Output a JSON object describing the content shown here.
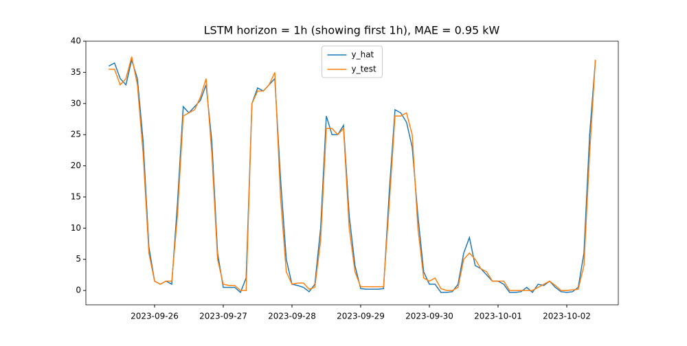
{
  "chart_data": {
    "type": "line",
    "title": "LSTM horizon = 1h (showing first 1h), MAE = 0.95 kW",
    "x": [
      19625.333,
      19625.417,
      19625.5,
      19625.583,
      19625.667,
      19625.75,
      19625.833,
      19625.917,
      19626,
      19626.083,
      19626.167,
      19626.25,
      19626.333,
      19626.417,
      19626.5,
      19626.583,
      19626.667,
      19626.75,
      19626.833,
      19626.917,
      19627,
      19627.083,
      19627.167,
      19627.25,
      19627.333,
      19627.417,
      19627.5,
      19627.583,
      19627.667,
      19627.75,
      19627.833,
      19627.917,
      19628,
      19628.083,
      19628.167,
      19628.25,
      19628.333,
      19628.417,
      19628.5,
      19628.583,
      19628.667,
      19628.75,
      19628.833,
      19628.917,
      19629,
      19629.083,
      19629.167,
      19629.25,
      19629.333,
      19629.417,
      19629.5,
      19629.583,
      19629.667,
      19629.75,
      19629.833,
      19629.917,
      19630,
      19630.083,
      19630.167,
      19630.25,
      19630.333,
      19630.417,
      19630.5,
      19630.583,
      19630.667,
      19630.75,
      19630.833,
      19630.917,
      19631,
      19631.083,
      19631.167,
      19631.25,
      19631.333,
      19631.417,
      19631.5,
      19631.583,
      19631.667,
      19631.75,
      19631.833,
      19631.917,
      19632,
      19632.083,
      19632.167,
      19632.25,
      19632.333,
      19632.417
    ],
    "series": [
      {
        "name": "y_hat",
        "color": "#1f77b4",
        "values": [
          36,
          36.5,
          34,
          33,
          37,
          34,
          24,
          7,
          1.5,
          1,
          1.5,
          1,
          14,
          29.5,
          28.5,
          29.5,
          30.5,
          33,
          24,
          6,
          0.5,
          0.5,
          0.5,
          -0.3,
          2,
          30,
          32.5,
          32,
          33,
          34,
          18,
          5,
          1,
          0.8,
          0.5,
          -0.2,
          1,
          10,
          28,
          25,
          25,
          26.5,
          12,
          4,
          0.3,
          0.2,
          0.2,
          0.2,
          0.3,
          16,
          29,
          28.5,
          27,
          23,
          12,
          3,
          1,
          1,
          -0.3,
          -0.3,
          -0.2,
          1,
          6,
          8.5,
          4,
          3.5,
          2.5,
          1.5,
          1.5,
          1,
          -0.3,
          -0.3,
          -0.2,
          0.5,
          -0.3,
          1,
          0.8,
          1.5,
          0.5,
          -0.2,
          -0.3,
          -0.2,
          0.5,
          6,
          25,
          37
        ]
      },
      {
        "name": "y_test",
        "color": "#ff7f0e",
        "values": [
          35.5,
          35.5,
          33,
          34,
          37.5,
          33,
          22,
          6,
          1.5,
          1,
          1.5,
          1.5,
          12,
          28,
          28.5,
          29,
          31,
          34,
          22,
          5,
          1,
          0.8,
          0.8,
          0,
          0,
          30,
          32,
          32,
          33,
          35,
          15,
          3,
          1,
          1.2,
          1.2,
          0.2,
          0.5,
          8,
          26,
          26,
          25,
          26,
          10,
          3,
          0.6,
          0.6,
          0.6,
          0.6,
          0.6,
          14,
          28,
          28,
          28.5,
          25,
          10,
          2,
          1.5,
          2,
          0.3,
          0,
          0,
          0.5,
          5,
          6,
          5,
          3.5,
          3,
          1.5,
          1.5,
          1.5,
          0,
          0,
          0,
          0,
          0,
          0.5,
          1,
          1.5,
          0.8,
          0,
          0,
          0.1,
          0.2,
          4,
          22,
          37
        ]
      }
    ],
    "xlim": [
      19625.0,
      19632.75
    ],
    "xticks": [
      {
        "value": 19626,
        "label": "2023-09-26"
      },
      {
        "value": 19627,
        "label": "2023-09-27"
      },
      {
        "value": 19628,
        "label": "2023-09-28"
      },
      {
        "value": 19629,
        "label": "2023-09-29"
      },
      {
        "value": 19630,
        "label": "2023-09-30"
      },
      {
        "value": 19631,
        "label": "2023-10-01"
      },
      {
        "value": 19632,
        "label": "2023-10-02"
      }
    ],
    "ylim": [
      -2.3,
      40.0
    ],
    "yticks": [
      0,
      5,
      10,
      15,
      20,
      25,
      30,
      35,
      40
    ],
    "grid": false,
    "legend": "upper center"
  }
}
